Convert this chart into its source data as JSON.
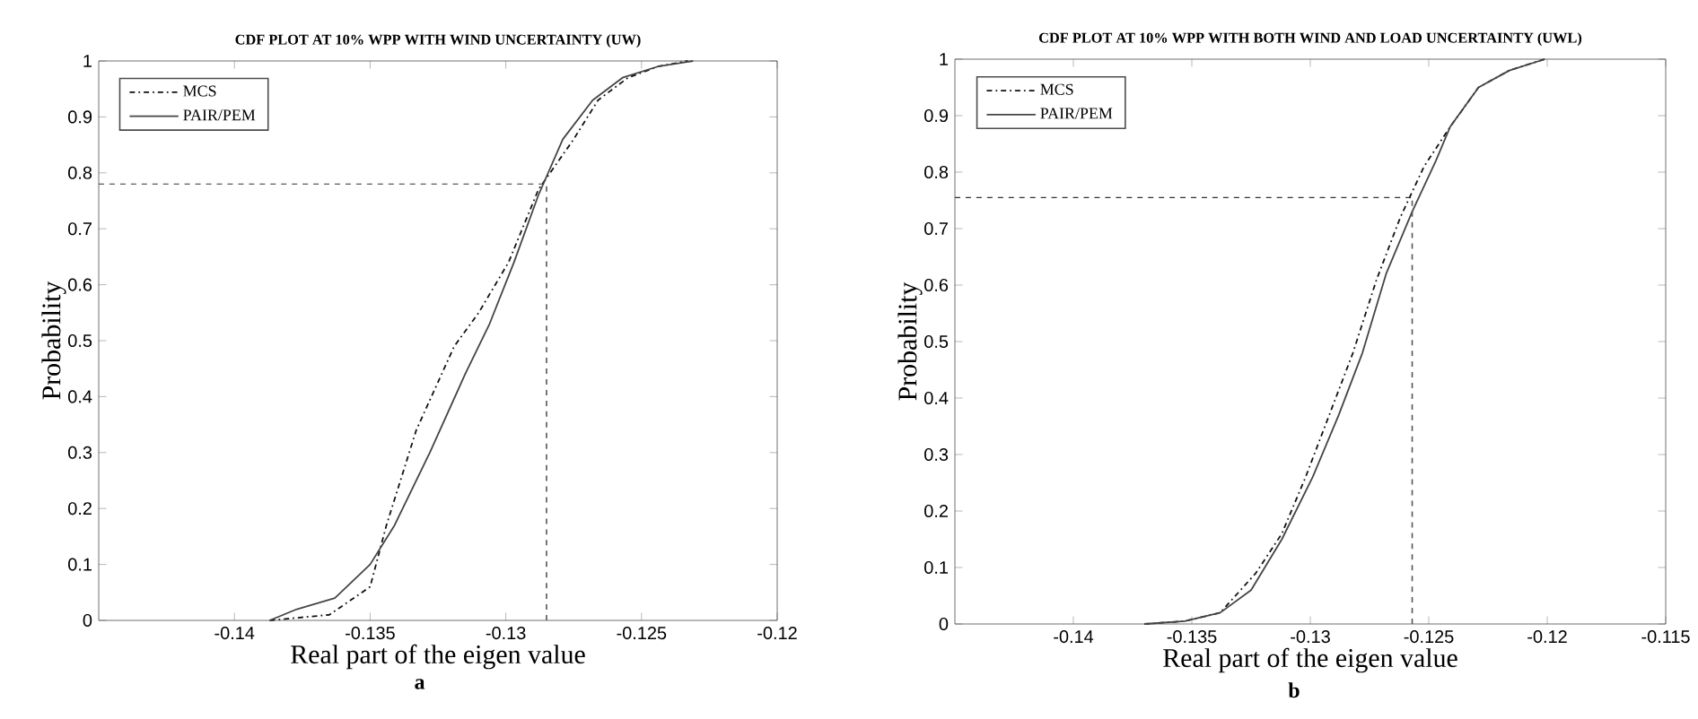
{
  "chart_data": [
    {
      "type": "line",
      "title": "CDF PLOT AT 10% WPP WITH WIND UNCERTAINTY (UW)",
      "xlabel": "Real part of the eigen value",
      "ylabel": "Probability",
      "annotations": [
        "a"
      ],
      "xlim": [
        -0.145,
        -0.12
      ],
      "xticks": [
        -0.14,
        -0.135,
        -0.13,
        -0.125,
        -0.12
      ],
      "ylim": [
        0,
        1
      ],
      "yticks": [
        0,
        0.1,
        0.2,
        0.3,
        0.4,
        0.5,
        0.6,
        0.7,
        0.8,
        0.9,
        1
      ],
      "legend": "top left",
      "grid": false,
      "marker": "none",
      "ref_lines": [
        {
          "axis": "x",
          "value": -0.1285,
          "color": "#555555",
          "line_style": "dashed"
        },
        {
          "axis": "y",
          "value": 0.78,
          "color": "#333333",
          "line_style": "dashed"
        }
      ],
      "series": [
        {
          "name": "MCS",
          "color": "#111111",
          "line_style": "dashdot",
          "x": [
            -0.1387,
            -0.1365,
            -0.135,
            -0.1344,
            -0.1333,
            -0.1319,
            -0.131,
            -0.1299,
            -0.1288,
            -0.1275,
            -0.1266,
            -0.1255,
            -0.1244,
            -0.1233
          ],
          "values": [
            0,
            0.01,
            0.06,
            0.17,
            0.34,
            0.49,
            0.55,
            0.64,
            0.77,
            0.86,
            0.93,
            0.97,
            0.99,
            1
          ]
        },
        {
          "name": "PAIR/PEM",
          "color": "#444444",
          "line_style": "solid",
          "x": [
            -0.1387,
            -0.1377,
            -0.1363,
            -0.135,
            -0.1341,
            -0.1328,
            -0.1315,
            -0.1306,
            -0.1297,
            -0.1288,
            -0.1279,
            -0.1268,
            -0.1257,
            -0.1244,
            -0.1231
          ],
          "values": [
            0,
            0.02,
            0.04,
            0.1,
            0.17,
            0.3,
            0.44,
            0.53,
            0.64,
            0.76,
            0.86,
            0.93,
            0.97,
            0.99,
            1
          ]
        }
      ]
    },
    {
      "type": "line",
      "title": "CDF PLOT AT 10% WPP WITH BOTH WIND AND LOAD UNCERTAINTY (UWL)",
      "xlabel": "Real part of the eigen value",
      "ylabel": "Probability",
      "annotations": [
        "b"
      ],
      "xlim": [
        -0.145,
        -0.115
      ],
      "xticks": [
        -0.14,
        -0.135,
        -0.13,
        -0.125,
        -0.12,
        -0.115
      ],
      "ylim": [
        0,
        1
      ],
      "yticks": [
        0,
        0.1,
        0.2,
        0.3,
        0.4,
        0.5,
        0.6,
        0.7,
        0.8,
        0.9,
        1
      ],
      "legend": "top left",
      "grid": false,
      "marker": "none",
      "ref_lines": [
        {
          "axis": "x",
          "value": -0.1257,
          "color": "#555555",
          "line_style": "dashed"
        },
        {
          "axis": "y",
          "value": 0.755,
          "color": "#333333",
          "line_style": "dashed"
        }
      ],
      "series": [
        {
          "name": "MCS",
          "color": "#111111",
          "line_style": "dashdot",
          "x": [
            -0.137,
            -0.1353,
            -0.1338,
            -0.1323,
            -0.1312,
            -0.1302,
            -0.1292,
            -0.1282,
            -0.1272,
            -0.1262,
            -0.1252,
            -0.1241,
            -0.1229,
            -0.1216,
            -0.1201
          ],
          "values": [
            0,
            0.005,
            0.02,
            0.09,
            0.16,
            0.26,
            0.37,
            0.48,
            0.61,
            0.72,
            0.81,
            0.88,
            0.95,
            0.98,
            1
          ]
        },
        {
          "name": "PAIR/PEM",
          "color": "#444444",
          "line_style": "solid",
          "x": [
            -0.137,
            -0.1353,
            -0.1338,
            -0.1325,
            -0.1312,
            -0.1299,
            -0.1288,
            -0.1278,
            -0.1268,
            -0.1257,
            -0.1247,
            -0.1241,
            -0.1229,
            -0.1216,
            -0.1201
          ],
          "values": [
            0,
            0.005,
            0.02,
            0.06,
            0.15,
            0.26,
            0.37,
            0.48,
            0.62,
            0.73,
            0.82,
            0.88,
            0.95,
            0.98,
            1
          ]
        }
      ]
    }
  ]
}
